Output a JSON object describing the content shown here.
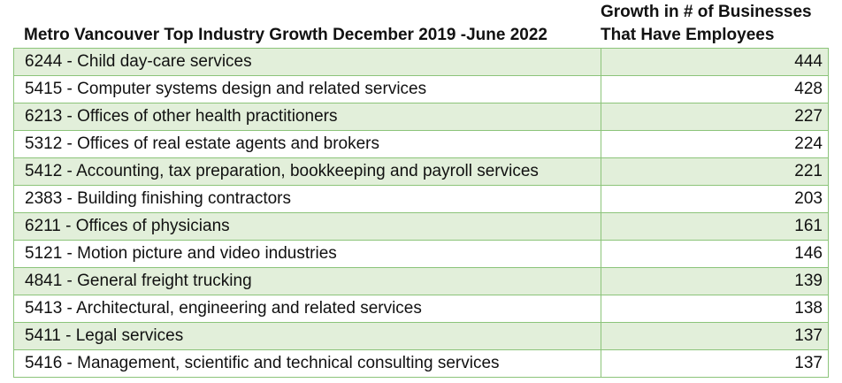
{
  "table": {
    "headers": {
      "industry": "Metro Vancouver Top Industry Growth December 2019 -June 2022",
      "growth_line1": "Growth in # of Businesses",
      "growth_line2": "That Have Employees"
    },
    "rows": [
      {
        "industry": "6244 - Child day-care services",
        "growth": "444"
      },
      {
        "industry": "5415 - Computer systems design and related services",
        "growth": "428"
      },
      {
        "industry": "6213 - Offices of other health practitioners",
        "growth": "227"
      },
      {
        "industry": "5312 - Offices of real estate agents and brokers",
        "growth": "224"
      },
      {
        "industry": "5412 - Accounting, tax preparation, bookkeeping and payroll services",
        "growth": "221"
      },
      {
        "industry": "2383 - Building finishing contractors",
        "growth": "203"
      },
      {
        "industry": "6211 - Offices of physicians",
        "growth": "161"
      },
      {
        "industry": "5121 - Motion picture and video industries",
        "growth": "146"
      },
      {
        "industry": "4841 - General freight trucking",
        "growth": "139"
      },
      {
        "industry": "5413 - Architectural, engineering and related services",
        "growth": "138"
      },
      {
        "industry": "5411 - Legal services",
        "growth": "137"
      },
      {
        "industry": "5416 - Management, scientific and technical consulting services",
        "growth": "137"
      }
    ]
  },
  "colors": {
    "shaded_row": "#e2efda",
    "border": "#8cc47a"
  }
}
